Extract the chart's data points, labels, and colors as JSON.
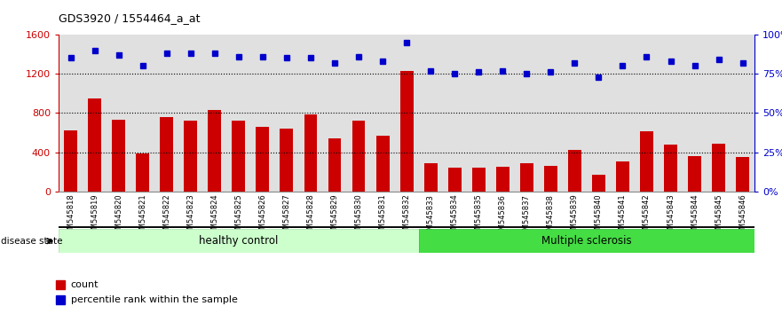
{
  "title": "GDS3920 / 1554464_a_at",
  "samples": [
    "GSM545818",
    "GSM545819",
    "GSM545820",
    "GSM545821",
    "GSM545822",
    "GSM545823",
    "GSM545824",
    "GSM545825",
    "GSM545826",
    "GSM545827",
    "GSM545828",
    "GSM545829",
    "GSM545830",
    "GSM545831",
    "GSM545832",
    "GSM545833",
    "GSM545834",
    "GSM545835",
    "GSM545836",
    "GSM545837",
    "GSM545838",
    "GSM545839",
    "GSM545840",
    "GSM545841",
    "GSM545842",
    "GSM545843",
    "GSM545844",
    "GSM545845",
    "GSM545846"
  ],
  "counts": [
    620,
    950,
    730,
    390,
    760,
    720,
    830,
    720,
    660,
    640,
    790,
    540,
    720,
    570,
    1230,
    290,
    245,
    245,
    250,
    290,
    265,
    420,
    175,
    310,
    610,
    480,
    360,
    490,
    355
  ],
  "percentile": [
    85,
    90,
    87,
    80,
    88,
    88,
    88,
    86,
    86,
    85,
    85,
    82,
    86,
    83,
    95,
    77,
    75,
    76,
    77,
    75,
    76,
    82,
    73,
    80,
    86,
    83,
    80,
    84,
    82
  ],
  "healthy_control_count": 15,
  "bar_color": "#cc0000",
  "dot_color": "#0000cc",
  "healthy_bg": "#ccffcc",
  "ms_bg": "#44dd44",
  "col_bg": "#e0e0e0",
  "ylim_left": [
    0,
    1600
  ],
  "ylim_right": [
    0,
    100
  ],
  "yticks_left": [
    0,
    400,
    800,
    1200,
    1600
  ],
  "yticks_right": [
    0,
    25,
    50,
    75,
    100
  ],
  "ytick_labels_left": [
    "0",
    "400",
    "800",
    "1200",
    "1600"
  ],
  "ytick_labels_right": [
    "0%",
    "25%",
    "50%",
    "75%",
    "100%"
  ],
  "grid_values": [
    400,
    800,
    1200
  ],
  "legend_count_label": "count",
  "legend_pct_label": "percentile rank within the sample",
  "disease_state_label": "disease state",
  "healthy_label": "healthy control",
  "ms_label": "Multiple sclerosis"
}
